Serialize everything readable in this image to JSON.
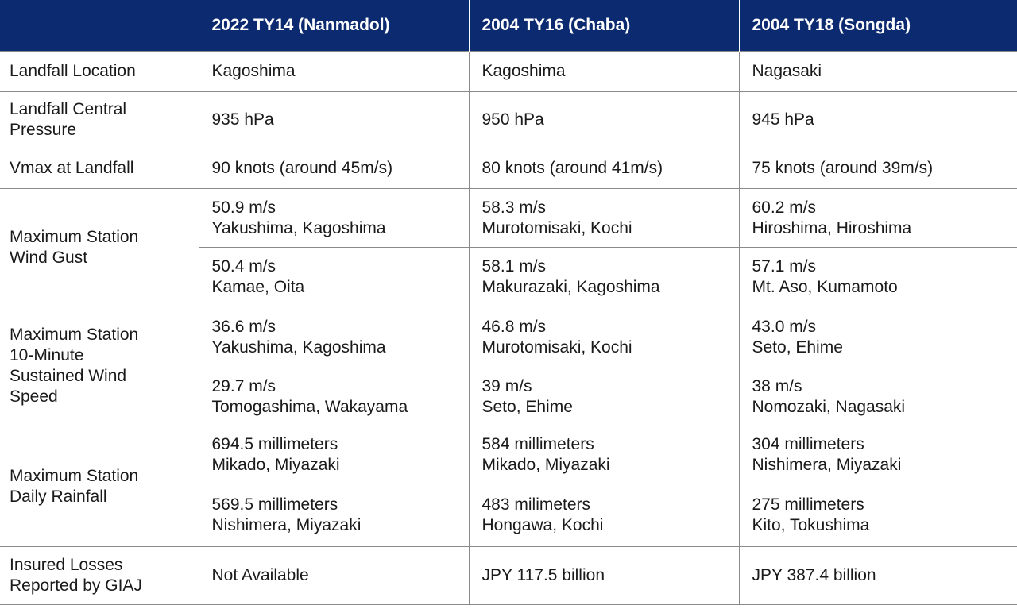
{
  "header": {
    "corner": "",
    "col1": "2022 TY14 (Nanmadol)",
    "col2": "2004 TY16 (Chaba)",
    "col3": "2004 TY18 (Songda)"
  },
  "rows": {
    "landfall_location": {
      "label": "Landfall Location",
      "c1": "Kagoshima",
      "c2": "Kagoshima",
      "c3": "Nagasaki"
    },
    "central_pressure": {
      "label_line1": "Landfall Central",
      "label_line2": "Pressure",
      "c1": "935 hPa",
      "c2": "950 hPa",
      "c3": "945 hPa"
    },
    "vmax": {
      "label": "Vmax at Landfall",
      "c1": "90 knots (around 45m/s)",
      "c2": "80 knots (around 41m/s)",
      "c3": "75 knots (around 39m/s)"
    },
    "wind_gust": {
      "label_line1": "Maximum Station",
      "label_line2": "Wind Gust",
      "r1": {
        "c1_value": "50.9 m/s",
        "c1_place": "Yakushima, Kagoshima",
        "c2_value": "58.3 m/s",
        "c2_place": "Murotomisaki, Kochi",
        "c3_value": "60.2 m/s",
        "c3_place": "Hiroshima, Hiroshima"
      },
      "r2": {
        "c1_value": "50.4 m/s",
        "c1_place": "Kamae, Oita",
        "c2_value": "58.1 m/s",
        "c2_place": "Makurazaki, Kagoshima",
        "c3_value": "57.1 m/s",
        "c3_place": "Mt. Aso, Kumamoto"
      }
    },
    "sustained_wind": {
      "label_line1": "Maximum Station",
      "label_line2": "10-Minute",
      "label_line3": "Sustained Wind",
      "label_line4": "Speed",
      "r1": {
        "c1_value": "36.6 m/s",
        "c1_place": "Yakushima, Kagoshima",
        "c2_value": "46.8 m/s",
        "c2_place": "Murotomisaki, Kochi",
        "c3_value": "43.0 m/s",
        "c3_place": "Seto, Ehime"
      },
      "r2": {
        "c1_value": "29.7 m/s",
        "c1_place": "Tomogashima, Wakayama",
        "c2_value": "39 m/s",
        "c2_place": "Seto, Ehime",
        "c3_value": "38 m/s",
        "c3_place": "Nomozaki, Nagasaki"
      }
    },
    "daily_rainfall": {
      "label_line1": "Maximum Station",
      "label_line2": "Daily Rainfall",
      "r1": {
        "c1_value": "694.5 millimeters",
        "c1_place": "Mikado, Miyazaki",
        "c2_value": "584 millimeters",
        "c2_place": "Mikado, Miyazaki",
        "c3_value": "304 millimeters",
        "c3_place": "Nishimera, Miyazaki"
      },
      "r2": {
        "c1_value": "569.5 millimeters",
        "c1_place": "Nishimera, Miyazaki",
        "c2_value": "483 milimeters",
        "c2_place": "Hongawa, Kochi",
        "c3_value": "275 millimeters",
        "c3_place": "Kito, Tokushima"
      }
    },
    "insured_losses": {
      "label_line1": "Insured Losses",
      "label_line2": "Reported by GIAJ",
      "c1": "Not Available",
      "c2": "JPY 117.5 billion",
      "c3": "JPY 387.4 billion"
    }
  },
  "colors": {
    "header_bg": "#0b2a6f",
    "header_text": "#ffffff",
    "body_text": "#1a1a1a",
    "grid": "#8a8a8a"
  }
}
